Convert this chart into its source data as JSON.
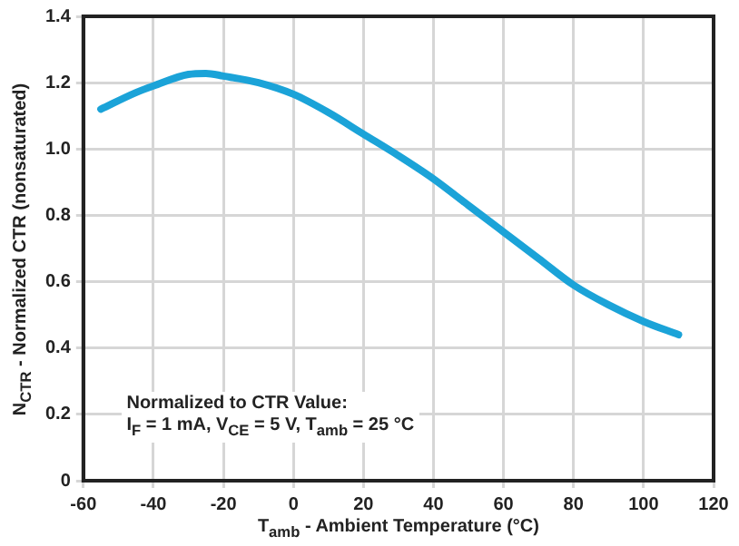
{
  "chart_data": {
    "type": "line",
    "xlabel": "T$_{amb}$ - Ambient Temperature (°C)",
    "ylabel": "N$_{CTR}$ - Normalized CTR (nonsaturated)",
    "annotations": [
      "Normalized to CTR Value:",
      "I$_{F}$ = 1 mA, V$_{CE}$ = 5 V, T$_{amb}$ = 25 °C"
    ],
    "x": [
      -55,
      -45,
      -40,
      -30,
      -25,
      -20,
      -10,
      0,
      10,
      20,
      30,
      40,
      50,
      60,
      70,
      80,
      90,
      100,
      110
    ],
    "series": [
      {
        "color": "#1ba3d8",
        "values": [
          1.12,
          1.17,
          1.19,
          1.225,
          1.228,
          1.22,
          1.2,
          1.165,
          1.11,
          1.045,
          0.98,
          0.91,
          0.83,
          0.75,
          0.67,
          0.59,
          0.53,
          0.48,
          0.44
        ]
      }
    ],
    "xlim": [
      -60,
      120
    ],
    "xticks": [
      -60,
      -40,
      -20,
      0,
      20,
      40,
      60,
      80,
      100,
      120
    ],
    "ylim": [
      0,
      1.4
    ],
    "yticks": [
      0,
      0.2,
      0.4,
      0.6,
      0.8,
      {
        "value": 1,
        "label": "1.0"
      },
      1.2,
      1.4
    ],
    "grid": true,
    "legend": false,
    "marker": "none",
    "line_style": "solid"
  }
}
